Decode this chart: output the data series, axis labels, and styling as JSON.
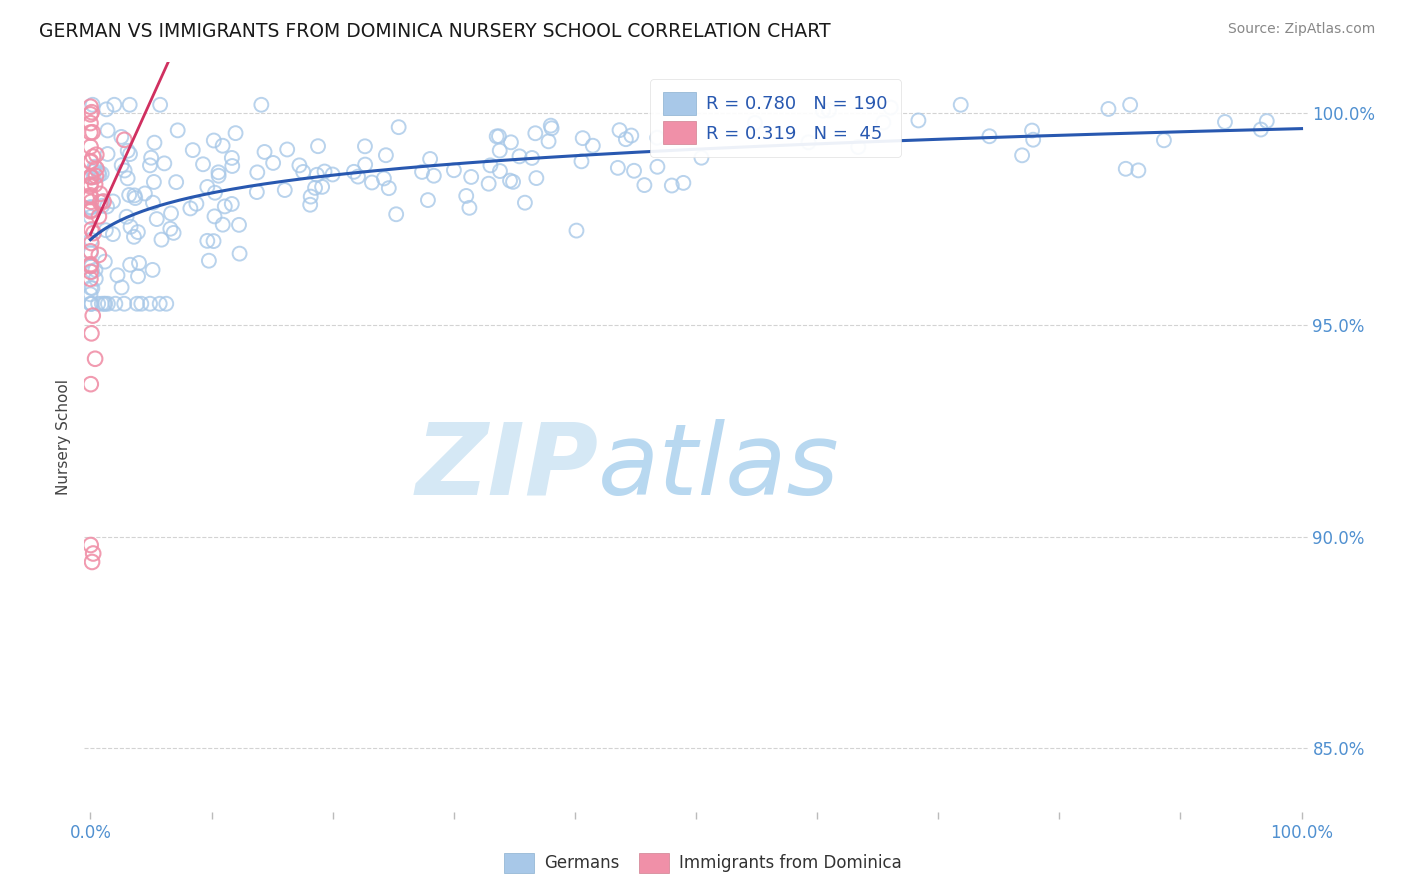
{
  "title": "GERMAN VS IMMIGRANTS FROM DOMINICA NURSERY SCHOOL CORRELATION CHART",
  "source_text": "Source: ZipAtlas.com",
  "ylabel": "Nursery School",
  "ytick_labels": [
    "100.0%",
    "95.0%",
    "90.0%",
    "85.0%"
  ],
  "ytick_values": [
    1.0,
    0.95,
    0.9,
    0.85
  ],
  "ymin": 0.835,
  "ymax": 1.012,
  "xmin": -0.005,
  "xmax": 1.005,
  "german_R": 0.78,
  "german_N": 190,
  "dominica_R": 0.319,
  "dominica_N": 45,
  "german_color": "#a8c8e8",
  "dominica_color": "#f090a8",
  "german_line_color": "#2858b0",
  "dominica_line_color": "#d03060",
  "title_color": "#1a1a1a",
  "axis_label_color": "#5090d0",
  "watermark_color": "#d5e8f5",
  "grid_color": "#c8c8c8",
  "legend_text_color": "#2858b0",
  "background_color": "#ffffff"
}
